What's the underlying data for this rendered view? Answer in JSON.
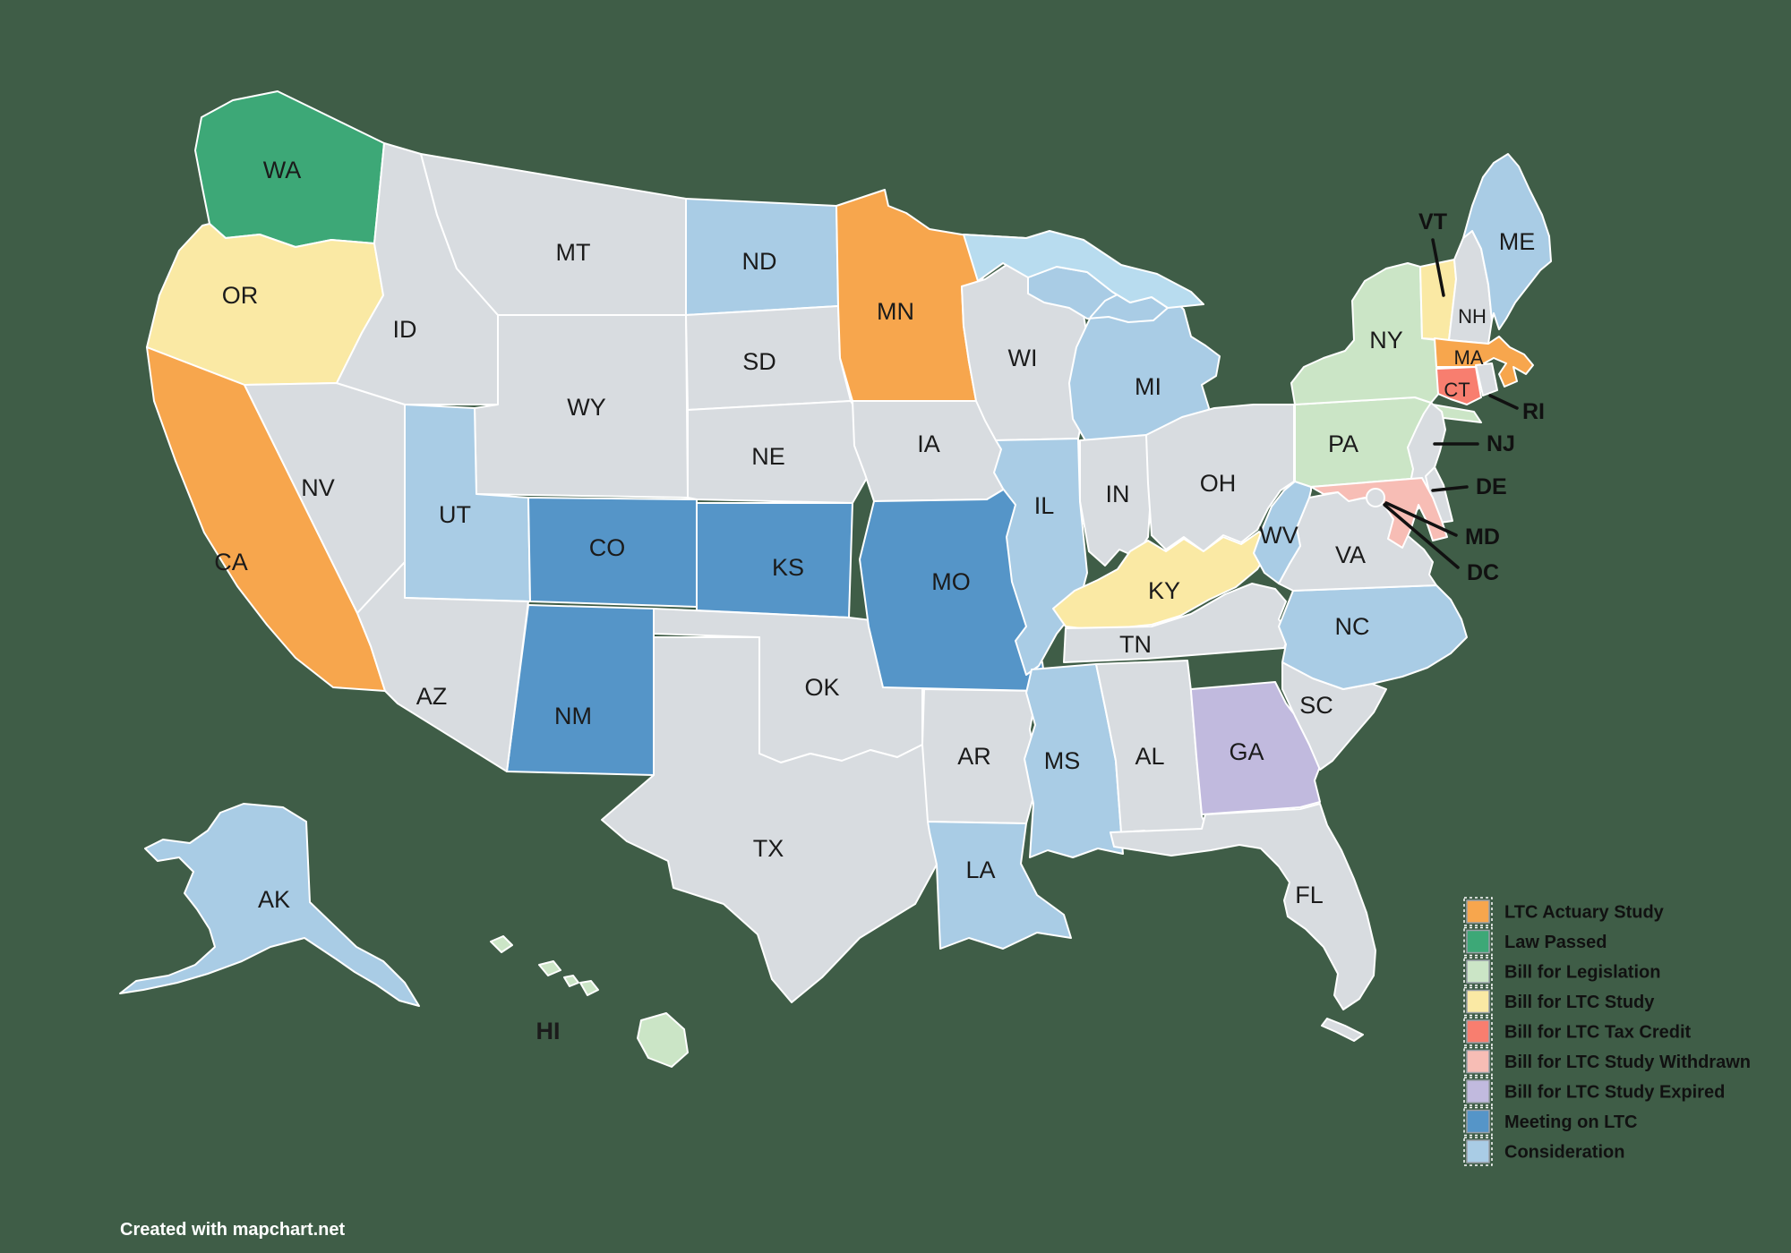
{
  "watermark": "Created with mapchart.net",
  "colors": {
    "background": "#3F5D47",
    "state_border": "#FFFFFF",
    "default_state": "#D8DCE0",
    "lake_water": "#B8DCEF",
    "label_text": "#1B1B1B",
    "annotation_text": "#111111",
    "watermark_text": "#FFFFFF"
  },
  "legend": {
    "items": [
      {
        "key": "actuary",
        "label": "LTC Actuary Study",
        "color": "#F7A64D"
      },
      {
        "key": "law",
        "label": "Law Passed",
        "color": "#3DA877"
      },
      {
        "key": "legislation",
        "label": "Bill for Legislation",
        "color": "#CBE5C6"
      },
      {
        "key": "study",
        "label": "Bill for LTC Study",
        "color": "#FAE9A4"
      },
      {
        "key": "tax_credit",
        "label": "Bill for LTC Tax Credit",
        "color": "#F87E6F"
      },
      {
        "key": "withdrawn",
        "label": "Bill for LTC Study Withdrawn",
        "color": "#F7BDB5"
      },
      {
        "key": "expired",
        "label": "Bill for LTC Study Expired",
        "color": "#C1BADE"
      },
      {
        "key": "meeting",
        "label": "Meeting on LTC",
        "color": "#5595C8"
      },
      {
        "key": "consideration",
        "label": "Consideration",
        "color": "#A9CCE5"
      }
    ]
  },
  "states": [
    {
      "abbr": "WA",
      "status": "law"
    },
    {
      "abbr": "OR",
      "status": "study"
    },
    {
      "abbr": "CA",
      "status": "actuary"
    },
    {
      "abbr": "NV",
      "status": null
    },
    {
      "abbr": "ID",
      "status": null
    },
    {
      "abbr": "MT",
      "status": null
    },
    {
      "abbr": "WY",
      "status": null
    },
    {
      "abbr": "UT",
      "status": "consideration"
    },
    {
      "abbr": "CO",
      "status": "meeting"
    },
    {
      "abbr": "NM",
      "status": "meeting"
    },
    {
      "abbr": "AZ",
      "status": null
    },
    {
      "abbr": "ND",
      "status": "consideration"
    },
    {
      "abbr": "SD",
      "status": null
    },
    {
      "abbr": "NE",
      "status": null
    },
    {
      "abbr": "KS",
      "status": "meeting"
    },
    {
      "abbr": "OK",
      "status": null
    },
    {
      "abbr": "TX",
      "status": null
    },
    {
      "abbr": "MN",
      "status": "actuary"
    },
    {
      "abbr": "IA",
      "status": null
    },
    {
      "abbr": "MO",
      "status": "meeting"
    },
    {
      "abbr": "AR",
      "status": null
    },
    {
      "abbr": "LA",
      "status": "consideration"
    },
    {
      "abbr": "WI",
      "status": null
    },
    {
      "abbr": "IL",
      "status": "consideration"
    },
    {
      "abbr": "MI",
      "status": "consideration"
    },
    {
      "abbr": "IN",
      "status": null
    },
    {
      "abbr": "OH",
      "status": null
    },
    {
      "abbr": "KY",
      "status": "study"
    },
    {
      "abbr": "TN",
      "status": null
    },
    {
      "abbr": "MS",
      "status": "consideration"
    },
    {
      "abbr": "AL",
      "status": null
    },
    {
      "abbr": "GA",
      "status": "expired"
    },
    {
      "abbr": "FL",
      "status": null
    },
    {
      "abbr": "SC",
      "status": null
    },
    {
      "abbr": "NC",
      "status": "consideration"
    },
    {
      "abbr": "VA",
      "status": null
    },
    {
      "abbr": "WV",
      "status": "consideration"
    },
    {
      "abbr": "PA",
      "status": "legislation"
    },
    {
      "abbr": "NY",
      "status": "legislation"
    },
    {
      "abbr": "NJ",
      "status": null
    },
    {
      "abbr": "DE",
      "status": null
    },
    {
      "abbr": "MD",
      "status": "withdrawn"
    },
    {
      "abbr": "DC",
      "status": null
    },
    {
      "abbr": "VT",
      "status": "study"
    },
    {
      "abbr": "NH",
      "status": null
    },
    {
      "abbr": "MA",
      "status": "actuary"
    },
    {
      "abbr": "CT",
      "status": "tax_credit"
    },
    {
      "abbr": "RI",
      "status": null
    },
    {
      "abbr": "ME",
      "status": "consideration"
    },
    {
      "abbr": "AK",
      "status": "consideration"
    },
    {
      "abbr": "HI",
      "status": "legislation"
    }
  ],
  "callouts": [
    "VT",
    "RI",
    "NJ",
    "DE",
    "MD",
    "DC"
  ]
}
